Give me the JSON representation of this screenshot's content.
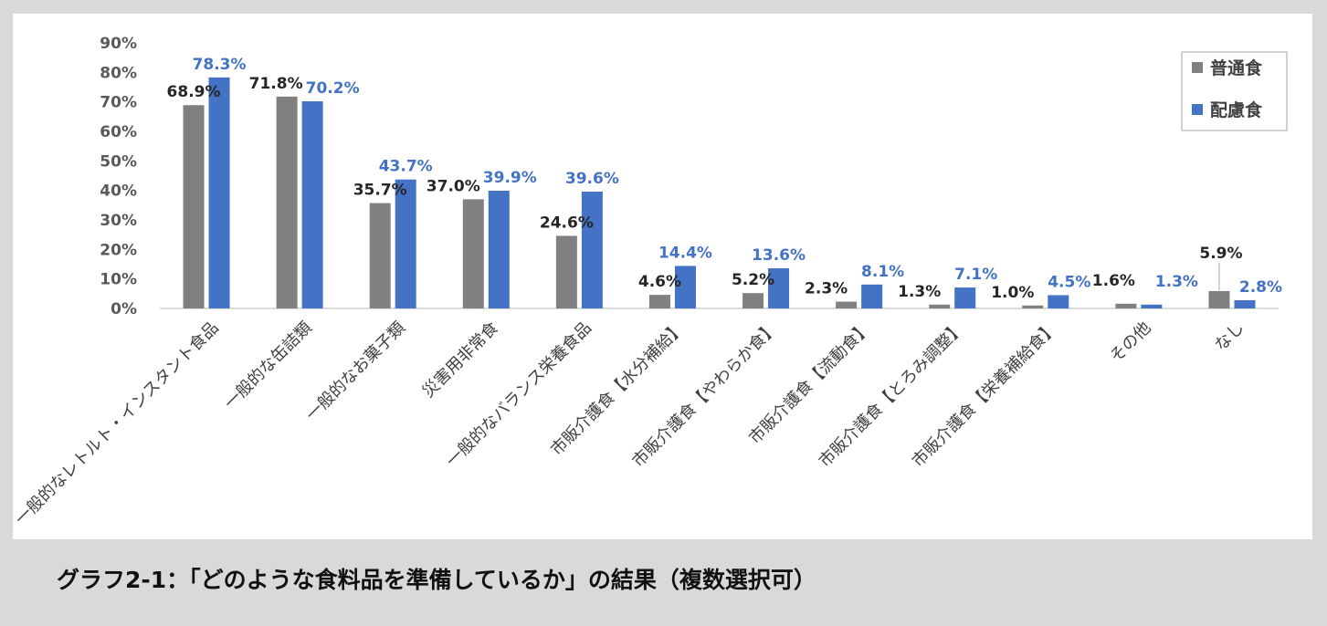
{
  "caption": "グラフ2-1：「どのような食料品を準備しているか」の結果（複数選択可）",
  "chart_data": {
    "type": "bar",
    "title": "",
    "xlabel": "",
    "ylabel": "",
    "ylim": [
      0,
      90
    ],
    "yticks": [
      "0%",
      "10%",
      "20%",
      "30%",
      "40%",
      "50%",
      "60%",
      "70%",
      "80%",
      "90%"
    ],
    "grid": false,
    "legend_position": "top-right",
    "categories": [
      "一般的なレトルト・インスタント食品",
      "一般的な缶詰類",
      "一般的なお菓子類",
      "災害用非常食",
      "一般的なバランス栄養食品",
      "市販介護食【水分補給】",
      "市販介護食【やわらか食】",
      "市販介護食【流動食】",
      "市販介護食【とろみ調整】",
      "市販介護食【栄養補給食】",
      "その他",
      "なし"
    ],
    "series": [
      {
        "name": "普通食",
        "color": "#808080",
        "label_color": "#262626",
        "values": [
          68.9,
          71.8,
          35.7,
          37.0,
          24.6,
          4.6,
          5.2,
          2.3,
          1.3,
          1.0,
          1.6,
          5.9
        ],
        "labels": [
          "68.9%",
          "71.8%",
          "35.7%",
          "37.0%",
          "24.6%",
          "4.6%",
          "5.2%",
          "2.3%",
          "1.3%",
          "1.0%",
          "1.6%",
          "5.9%"
        ]
      },
      {
        "name": "配慮食",
        "color": "#4472c4",
        "label_color": "#4472c4",
        "values": [
          78.3,
          70.2,
          43.7,
          39.9,
          39.6,
          14.4,
          13.6,
          8.1,
          7.1,
          4.5,
          1.3,
          2.8
        ],
        "labels": [
          "78.3%",
          "70.2%",
          "43.7%",
          "39.9%",
          "39.6%",
          "14.4%",
          "13.6%",
          "8.1%",
          "7.1%",
          "4.5%",
          "1.3%",
          "2.8%"
        ]
      }
    ]
  }
}
